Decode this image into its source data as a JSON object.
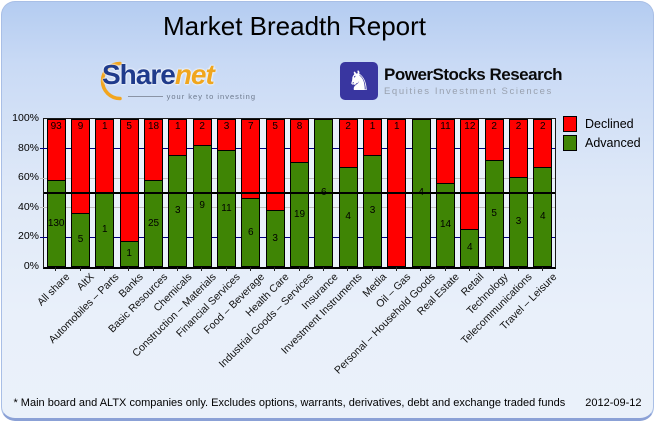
{
  "title": "Market Breadth Report",
  "logos": {
    "sharenet": {
      "part1": "Share",
      "part2": "net",
      "tagline": "your key to investing"
    },
    "powerstocks": {
      "name": "PowerStocks Research",
      "tagline": "Equities Investment Sciences",
      "icon": "knight-chess-icon",
      "knight_glyph": "♞",
      "square_color": "#3936a0"
    }
  },
  "chart_data": {
    "type": "bar",
    "stacked": true,
    "orientation": "vertical",
    "note": "segment heights are percent of total = value / (declined+advanced); numeric labels show raw counts",
    "categories": [
      "All share",
      "AltX",
      "Automobiles – Parts",
      "Banks",
      "Basic Resources",
      "Chemicals",
      "Construction – Materials",
      "Financial Services",
      "Food – Beverage",
      "Health Care",
      "Industrial Goods – Services",
      "Insurance",
      "Investment Instruments",
      "Media",
      "Oil – Gas",
      "Personal – Household Goods",
      "Real Estate",
      "Retail",
      "Technology",
      "Telecommunications",
      "Travel – Leisure"
    ],
    "series": [
      {
        "name": "Declined",
        "color": "#ff0000",
        "values": [
          93,
          9,
          1,
          5,
          18,
          1,
          2,
          3,
          7,
          5,
          8,
          0,
          2,
          1,
          1,
          0,
          11,
          12,
          2,
          2,
          2
        ]
      },
      {
        "name": "Advanced",
        "color": "#3f8505",
        "values": [
          130,
          5,
          1,
          1,
          25,
          3,
          9,
          11,
          6,
          3,
          19,
          6,
          4,
          3,
          0,
          4,
          14,
          4,
          5,
          3,
          4
        ]
      }
    ],
    "y_ticks": [
      "100%",
      "80%",
      "60%",
      "40%",
      "20%",
      "0%"
    ],
    "y_tick_pcts": [
      100,
      80,
      60,
      40,
      20,
      0
    ],
    "ylim": [
      0,
      100
    ],
    "gridlines": [
      {
        "pct": 80,
        "color": "#000080"
      },
      {
        "pct": 60,
        "color": "#c0c0c0"
      },
      {
        "pct": 40,
        "color": "#c0c0c0"
      },
      {
        "pct": 20,
        "color": "#000080"
      }
    ],
    "reference_line": {
      "pct": 50,
      "color": "#000000"
    },
    "legend_position": "top-right",
    "legend": [
      {
        "label": "Declined",
        "color": "#ff0000"
      },
      {
        "label": "Advanced",
        "color": "#3f8505"
      }
    ]
  },
  "footer": {
    "note": "* Main board and ALTX companies only. Excludes options, warrants, derivatives, debt and exchange traded funds",
    "date": "2012-09-12"
  }
}
